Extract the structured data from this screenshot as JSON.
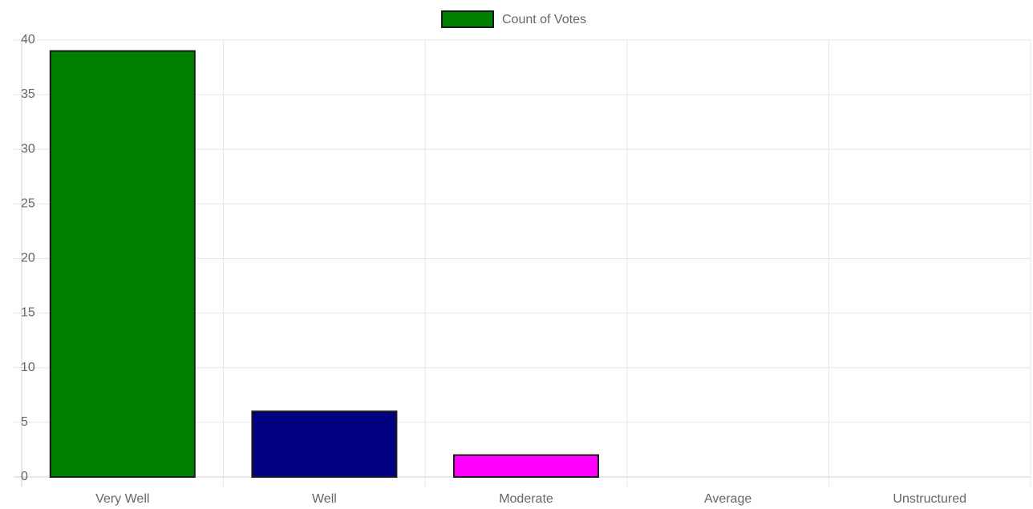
{
  "chart_data": {
    "type": "bar",
    "categories": [
      "Very Well",
      "Well",
      "Moderate",
      "Average",
      "Unstructured"
    ],
    "series": [
      {
        "name": "Count of Votes",
        "values": [
          39,
          6,
          2,
          0,
          0
        ],
        "colors": [
          "#008000",
          "#000080",
          "#ff00ff",
          "#ffa500",
          "#ff0000"
        ]
      }
    ],
    "legend_color": "#008000",
    "ylim": [
      0,
      40
    ],
    "yticks": [
      0,
      5,
      10,
      15,
      20,
      25,
      30,
      35,
      40
    ],
    "grid": true,
    "legend_position": "top-center"
  }
}
